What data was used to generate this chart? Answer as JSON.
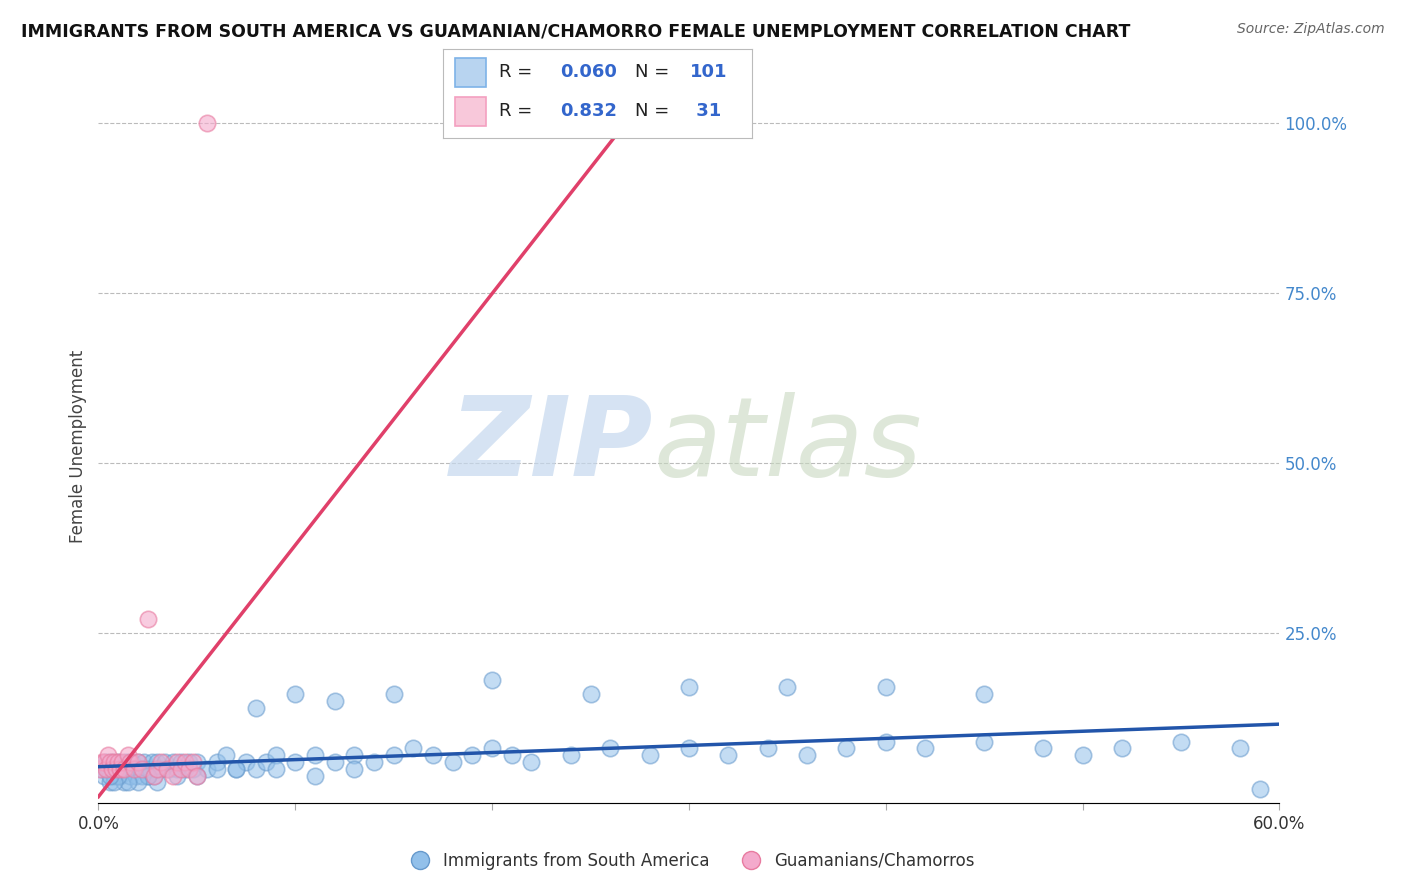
{
  "title": "IMMIGRANTS FROM SOUTH AMERICA VS GUAMANIAN/CHAMORRO FEMALE UNEMPLOYMENT CORRELATION CHART",
  "source": "Source: ZipAtlas.com",
  "ylabel": "Female Unemployment",
  "xlim": [
    0.0,
    0.6
  ],
  "ylim": [
    0.0,
    1.05
  ],
  "blue_R": 0.06,
  "blue_N": 101,
  "pink_R": 0.832,
  "pink_N": 31,
  "blue_label": "Immigrants from South America",
  "pink_label": "Guamanians/Chamorros",
  "blue_color": "#92C0EA",
  "pink_color": "#F4AACC",
  "blue_edge_color": "#6699CC",
  "pink_edge_color": "#E87BA0",
  "blue_line_color": "#2255AA",
  "pink_line_color": "#E0406A",
  "background_color": "#FFFFFF",
  "blue_x": [
    0.002,
    0.003,
    0.004,
    0.005,
    0.006,
    0.007,
    0.008,
    0.009,
    0.01,
    0.011,
    0.012,
    0.013,
    0.014,
    0.015,
    0.016,
    0.017,
    0.018,
    0.019,
    0.02,
    0.021,
    0.022,
    0.023,
    0.024,
    0.025,
    0.026,
    0.027,
    0.028,
    0.029,
    0.03,
    0.032,
    0.034,
    0.036,
    0.038,
    0.04,
    0.042,
    0.044,
    0.046,
    0.048,
    0.05,
    0.055,
    0.06,
    0.065,
    0.07,
    0.075,
    0.08,
    0.085,
    0.09,
    0.1,
    0.11,
    0.12,
    0.13,
    0.14,
    0.15,
    0.16,
    0.17,
    0.18,
    0.19,
    0.2,
    0.21,
    0.22,
    0.24,
    0.26,
    0.28,
    0.3,
    0.32,
    0.34,
    0.36,
    0.38,
    0.4,
    0.42,
    0.45,
    0.48,
    0.5,
    0.52,
    0.55,
    0.58,
    0.59,
    0.35,
    0.4,
    0.45,
    0.25,
    0.3,
    0.2,
    0.15,
    0.12,
    0.1,
    0.08,
    0.06,
    0.04,
    0.03,
    0.025,
    0.02,
    0.015,
    0.01,
    0.008,
    0.006,
    0.05,
    0.07,
    0.09,
    0.11,
    0.13
  ],
  "blue_y": [
    0.05,
    0.04,
    0.06,
    0.05,
    0.03,
    0.06,
    0.04,
    0.05,
    0.06,
    0.04,
    0.05,
    0.03,
    0.06,
    0.05,
    0.04,
    0.06,
    0.05,
    0.04,
    0.06,
    0.05,
    0.04,
    0.06,
    0.05,
    0.04,
    0.05,
    0.06,
    0.04,
    0.05,
    0.06,
    0.05,
    0.06,
    0.05,
    0.06,
    0.05,
    0.06,
    0.05,
    0.06,
    0.05,
    0.06,
    0.05,
    0.06,
    0.07,
    0.05,
    0.06,
    0.05,
    0.06,
    0.07,
    0.06,
    0.07,
    0.06,
    0.07,
    0.06,
    0.07,
    0.08,
    0.07,
    0.06,
    0.07,
    0.08,
    0.07,
    0.06,
    0.07,
    0.08,
    0.07,
    0.08,
    0.07,
    0.08,
    0.07,
    0.08,
    0.09,
    0.08,
    0.09,
    0.08,
    0.07,
    0.08,
    0.09,
    0.08,
    0.02,
    0.17,
    0.17,
    0.16,
    0.16,
    0.17,
    0.18,
    0.16,
    0.15,
    0.16,
    0.14,
    0.05,
    0.04,
    0.03,
    0.04,
    0.03,
    0.03,
    0.04,
    0.03,
    0.04,
    0.04,
    0.05,
    0.05,
    0.04,
    0.05
  ],
  "pink_x": [
    0.001,
    0.002,
    0.003,
    0.004,
    0.005,
    0.006,
    0.007,
    0.008,
    0.009,
    0.01,
    0.011,
    0.012,
    0.013,
    0.015,
    0.016,
    0.018,
    0.02,
    0.022,
    0.025,
    0.028,
    0.03,
    0.032,
    0.035,
    0.038,
    0.04,
    0.042,
    0.044,
    0.046,
    0.048,
    0.05,
    0.055
  ],
  "pink_y": [
    0.05,
    0.06,
    0.06,
    0.05,
    0.07,
    0.06,
    0.05,
    0.06,
    0.05,
    0.06,
    0.05,
    0.06,
    0.05,
    0.07,
    0.06,
    0.05,
    0.06,
    0.05,
    0.27,
    0.04,
    0.05,
    0.06,
    0.05,
    0.04,
    0.06,
    0.05,
    0.06,
    0.05,
    0.06,
    0.04,
    1.0
  ],
  "legend_blue_patch_color": "#B8D4F0",
  "legend_blue_patch_edge": "#7EB3E8",
  "legend_pink_patch_color": "#F8C8DA",
  "legend_pink_patch_edge": "#F4A0C0",
  "legend_R_color": "#222222",
  "legend_val_color": "#3366CC",
  "legend_pink_val_color": "#E0406A",
  "ytick_color": "#4488CC",
  "xtick_color": "#333333"
}
